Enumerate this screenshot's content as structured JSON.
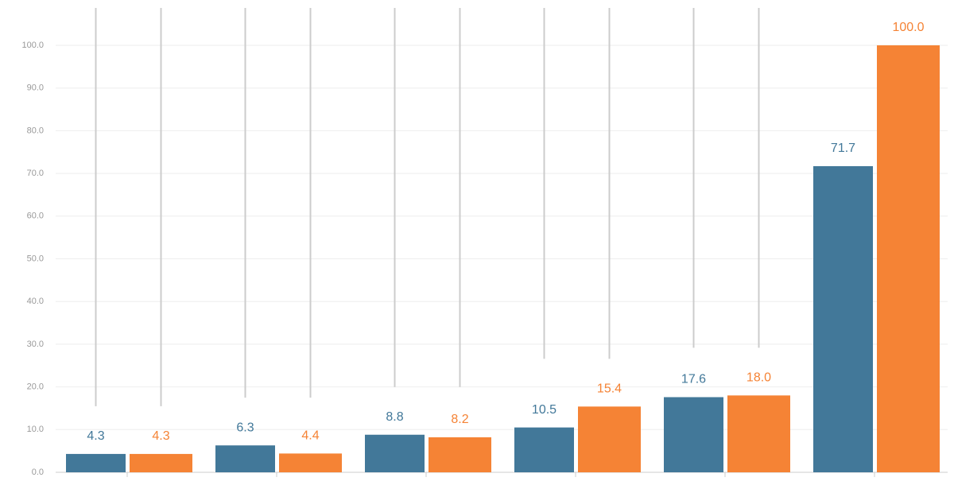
{
  "chart_data": {
    "type": "bar",
    "categories": [
      null,
      null,
      null,
      null,
      null,
      null
    ],
    "series": [
      {
        "color": "#427899",
        "values": [
          4.3,
          6.3,
          8.8,
          10.5,
          17.6,
          71.7
        ],
        "value_labels": [
          "4.3",
          "6.3",
          "8.8",
          "10.5",
          "17.6",
          "71.7"
        ]
      },
      {
        "color": "#f58335",
        "values": [
          4.3,
          4.4,
          8.2,
          15.4,
          18.0,
          100.0
        ],
        "value_labels": [
          "4.3",
          "4.4",
          "8.2",
          "15.4",
          "18.0",
          "100.0"
        ]
      }
    ],
    "ylim": [
      0,
      100
    ],
    "yticks": [
      {
        "value": 0,
        "label": "0.0"
      },
      {
        "value": 10,
        "label": "10.0"
      },
      {
        "value": 20,
        "label": "20.0"
      },
      {
        "value": 30,
        "label": "30.0"
      },
      {
        "value": 40,
        "label": "40.0"
      },
      {
        "value": 50,
        "label": "50.0"
      },
      {
        "value": 60,
        "label": "60.0"
      },
      {
        "value": 70,
        "label": "70.0"
      },
      {
        "value": 80,
        "label": "80.0"
      },
      {
        "value": 90,
        "label": "90.0"
      },
      {
        "value": 100,
        "label": "100.0"
      }
    ],
    "grid": true
  }
}
